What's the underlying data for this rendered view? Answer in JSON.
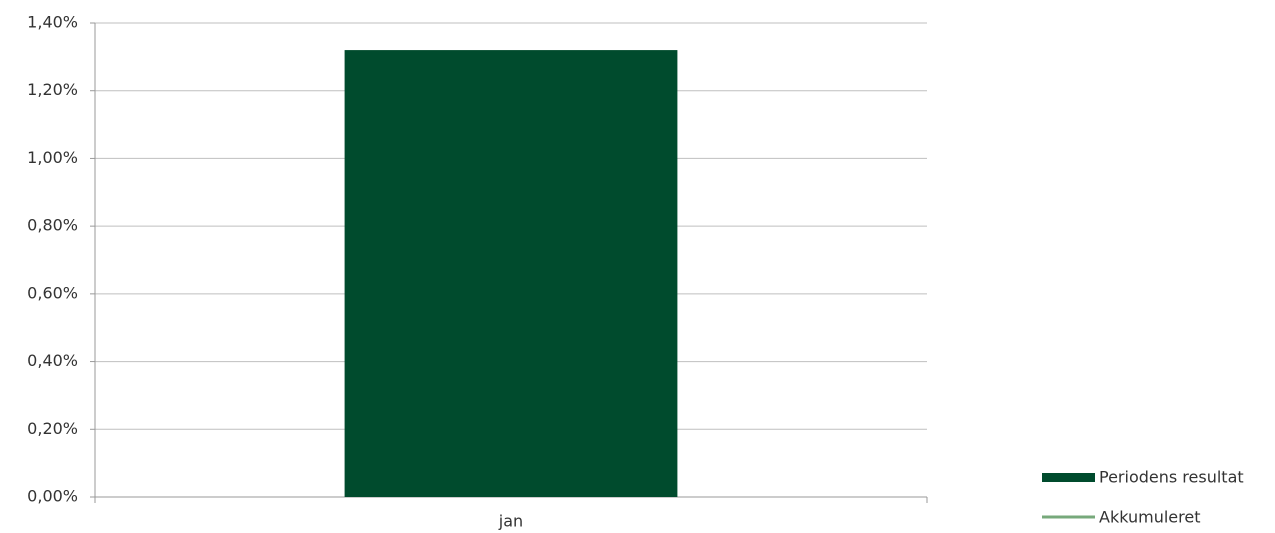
{
  "chart_data": {
    "type": "bar",
    "categories": [
      "jan"
    ],
    "series": [
      {
        "name": "Periodens resultat",
        "type": "bar",
        "color": "#004b2d",
        "values": [
          1.32
        ]
      },
      {
        "name": "Akkumuleret",
        "type": "line",
        "color": "#77a97b",
        "values": [
          1.32
        ]
      }
    ],
    "ylim": [
      0,
      1.4
    ],
    "yticks": [
      {
        "value": 0,
        "label": "0,00%"
      },
      {
        "value": 0.2,
        "label": "0,20%"
      },
      {
        "value": 0.4,
        "label": "0,40%"
      },
      {
        "value": 0.6,
        "label": "0,60%"
      },
      {
        "value": 0.8,
        "label": "0,80%"
      },
      {
        "value": 1.0,
        "label": "1,00%"
      },
      {
        "value": 1.2,
        "label": "1,20%"
      },
      {
        "value": 1.4,
        "label": "1,40%"
      }
    ],
    "grid": true,
    "legend": "right"
  }
}
